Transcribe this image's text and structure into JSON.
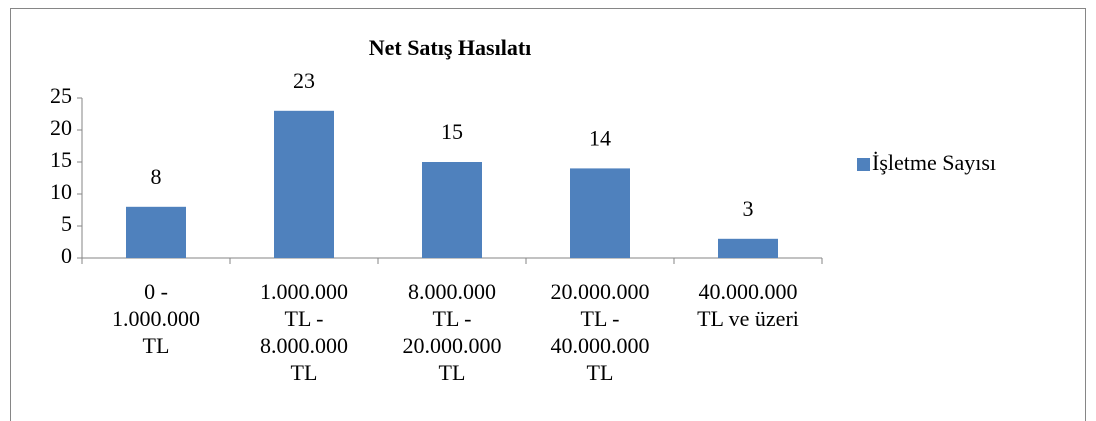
{
  "chart_data": {
    "type": "bar",
    "title": "Net Satış Hasılatı",
    "categories": [
      "0 - 1.000.000 TL",
      "1.000.000 TL - 8.000.000 TL",
      "8.000.000 TL - 20.000.000 TL",
      "20.000.000 TL - 40.000.000 TL",
      "40.000.000 TL ve üzeri"
    ],
    "series": [
      {
        "name": "İşletme Sayısı",
        "color": "#4f81bd",
        "values": [
          8,
          23,
          15,
          14,
          3
        ]
      }
    ],
    "ylim": [
      0,
      25
    ],
    "yticks": [
      0,
      5,
      10,
      15,
      20,
      25
    ],
    "legend": "right"
  }
}
